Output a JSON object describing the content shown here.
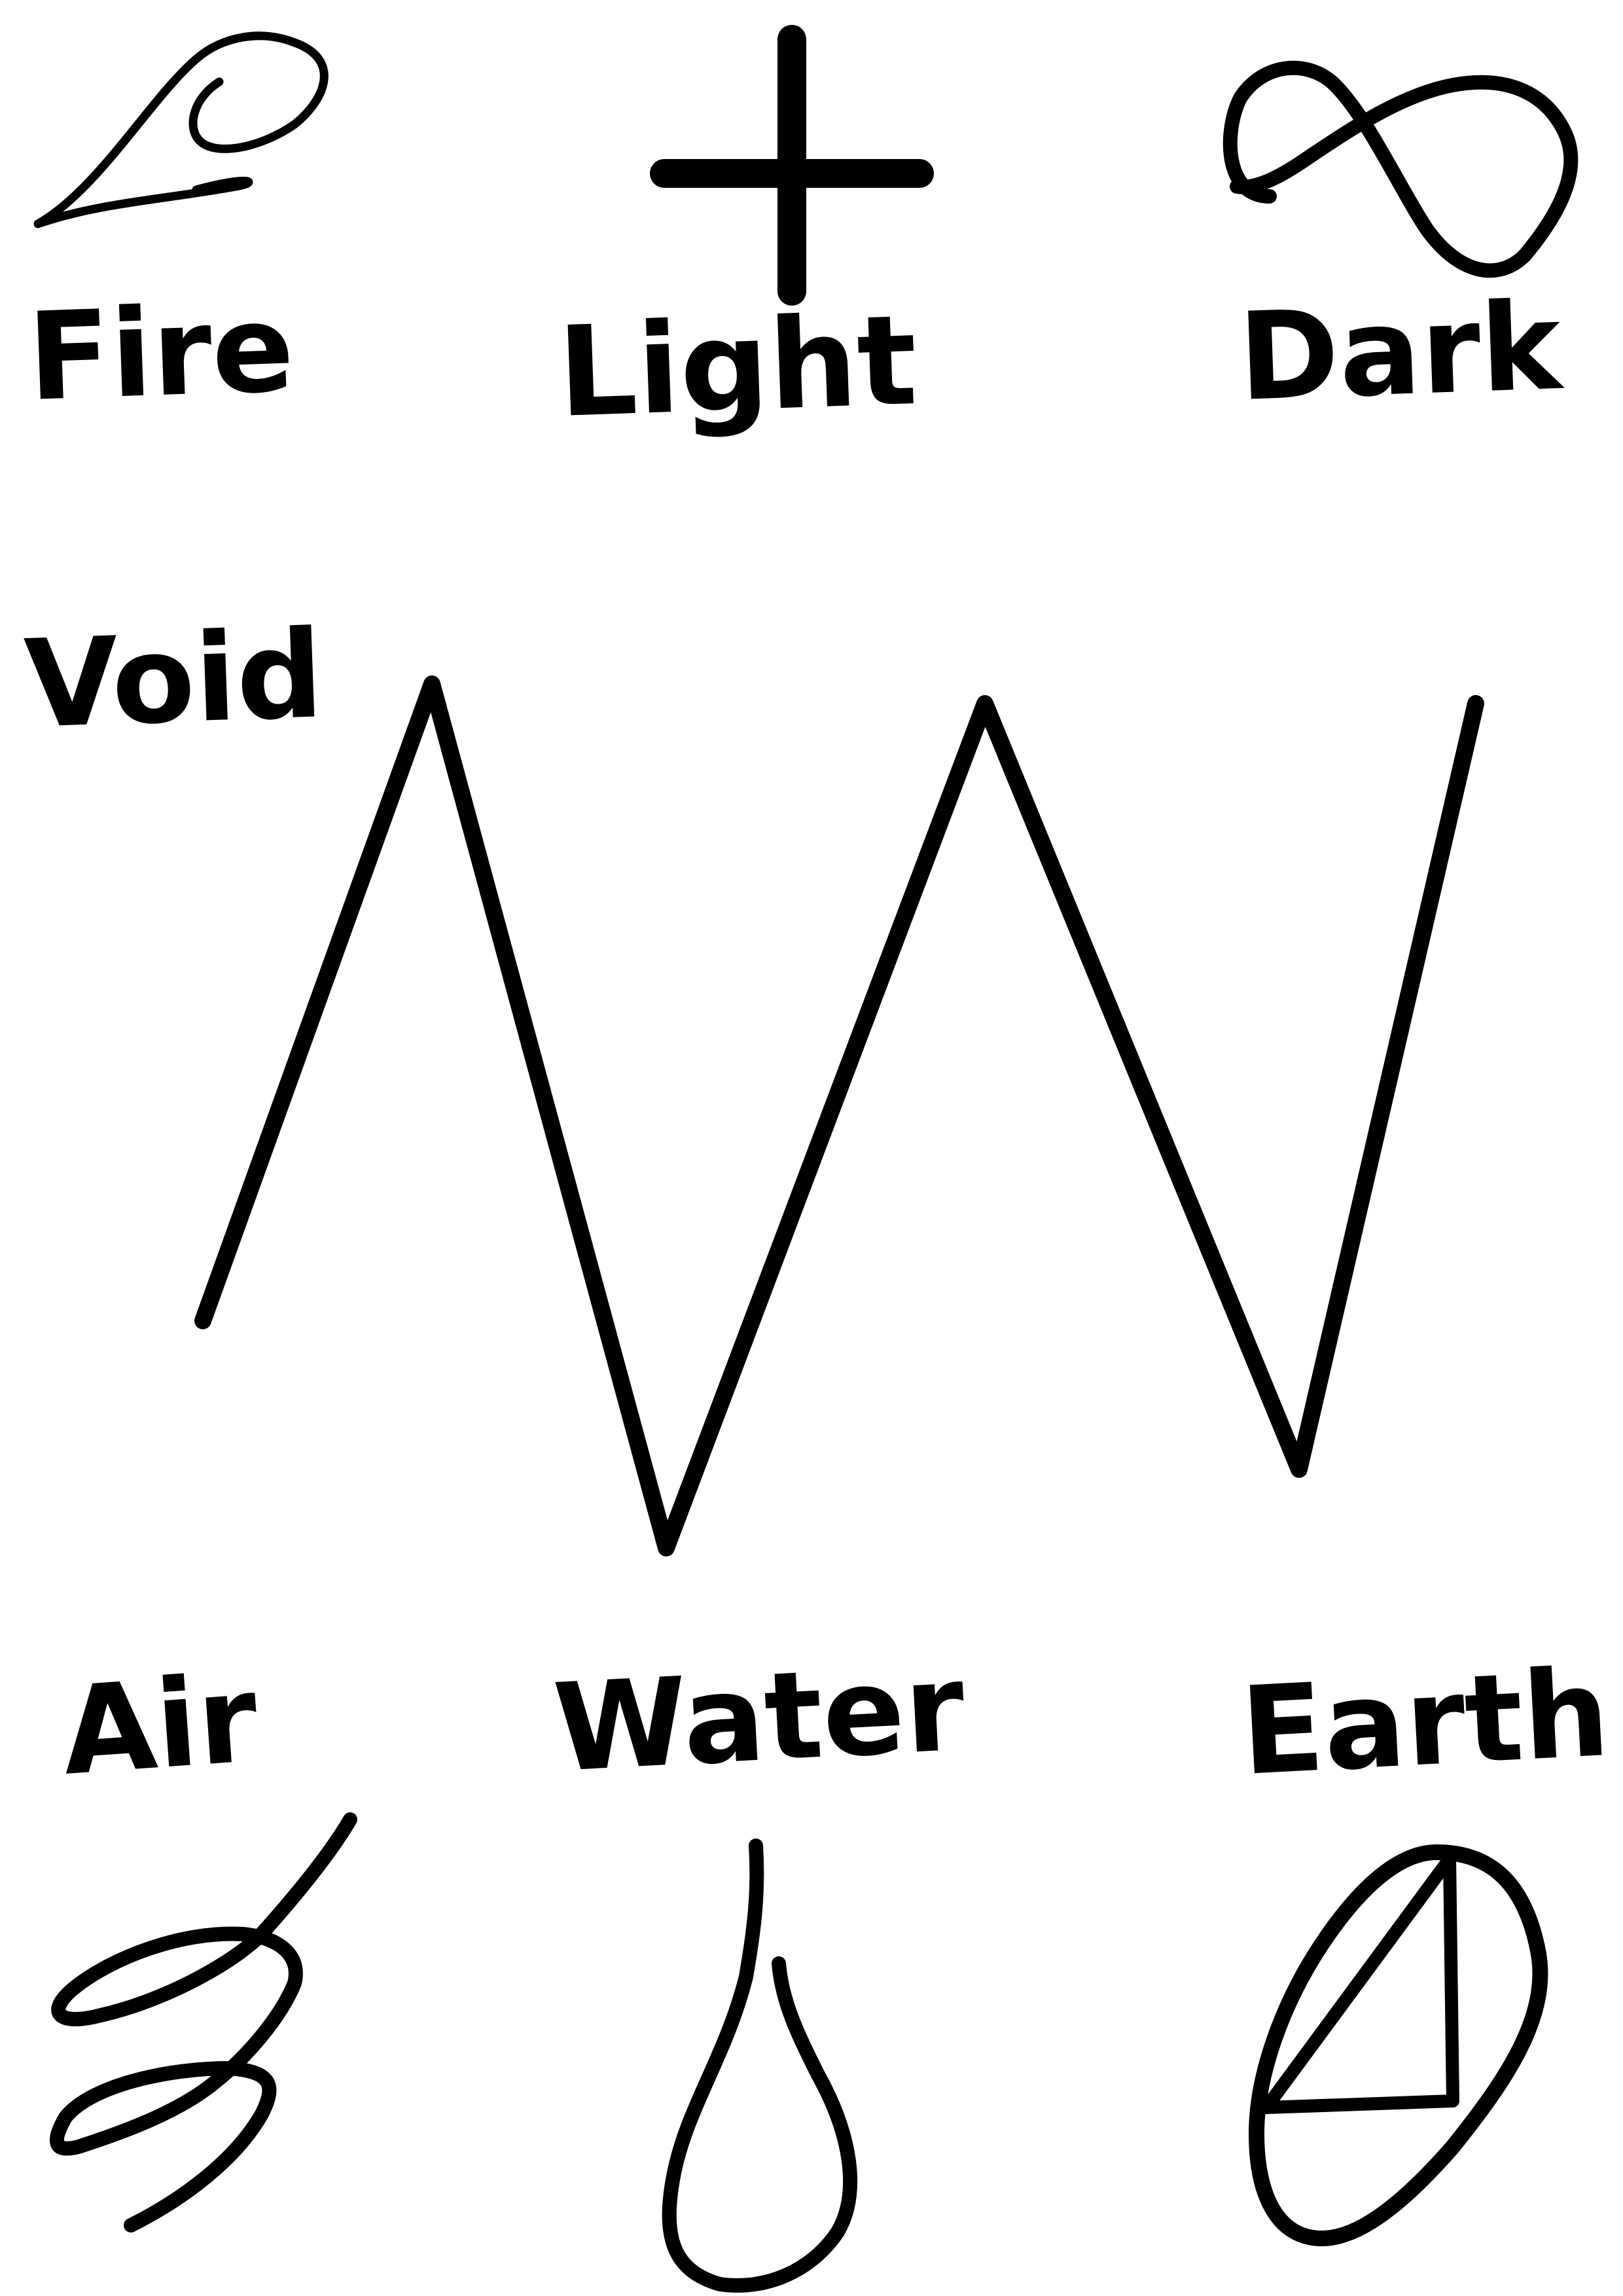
{
  "labels": {
    "fire": "Fire",
    "light": "Light",
    "dark": "Dark",
    "void": "Void",
    "air": "Air",
    "water": "Water",
    "earth": "Earth"
  },
  "symbols": {
    "fire": "teardrop-loop",
    "light": "plus-cross",
    "dark": "infinity",
    "void": "zigzag",
    "air": "wind-swirl",
    "water": "water-drop",
    "earth": "circle-with-triangle"
  },
  "colors": {
    "ink": "#000000",
    "paper": "#ffffff"
  }
}
